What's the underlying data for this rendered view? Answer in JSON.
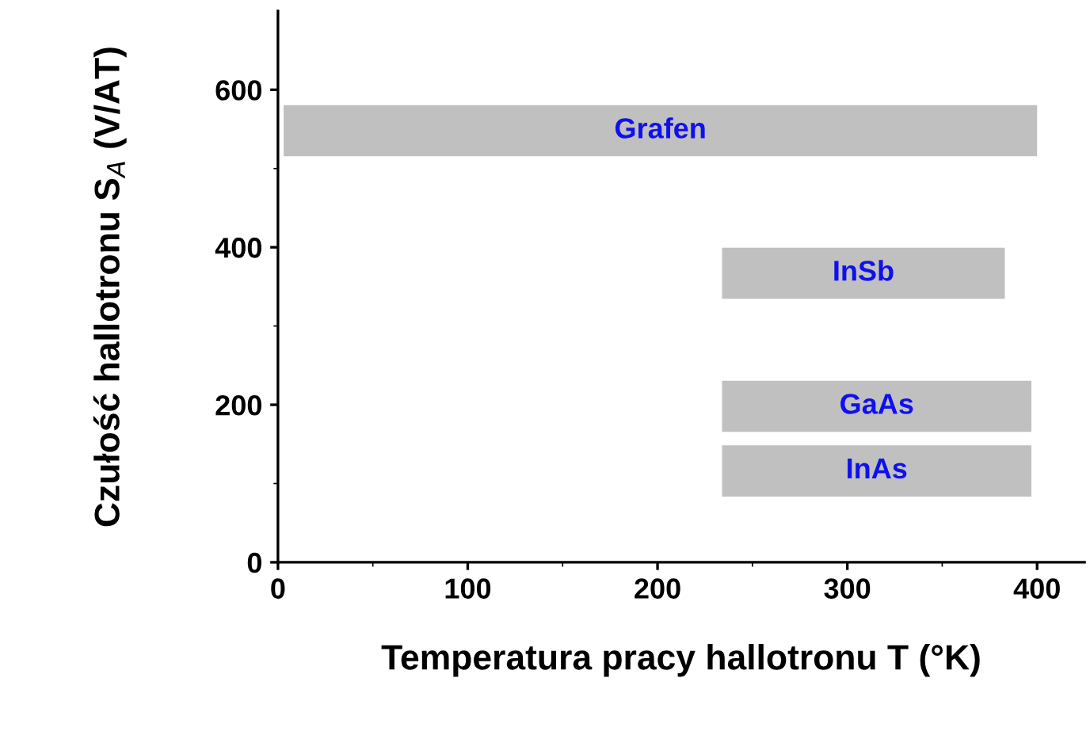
{
  "chart_data": {
    "type": "bar",
    "orientation": "horizontal",
    "xlabel": "Temperatura pracy hallotronu T (°K)",
    "ylabel": "Czułość hallotronu S$_{A}$ (V/AT)",
    "series": [
      {
        "name": "Grafen",
        "color": "#c0c0c0",
        "x": [
          548
        ],
        "base": [
          3
        ],
        "values": [
          397
        ]
      },
      {
        "name": "InSb",
        "color": "#c0c0c0",
        "x": [
          367
        ],
        "base": [
          234
        ],
        "values": [
          149
        ]
      },
      {
        "name": "GaAs",
        "color": "#c0c0c0",
        "x": [
          198
        ],
        "base": [
          234
        ],
        "values": [
          163
        ]
      },
      {
        "name": "InAs",
        "color": "#c0c0c0",
        "x": [
          116
        ],
        "base": [
          234
        ],
        "values": [
          163
        ]
      }
    ],
    "xlim": [
      0,
      425
    ],
    "ylim": [
      0,
      700
    ],
    "xticks": [
      0,
      100,
      200,
      300,
      400
    ],
    "yticks": [
      0,
      200,
      400,
      600
    ],
    "grid": false,
    "legend": false
  }
}
